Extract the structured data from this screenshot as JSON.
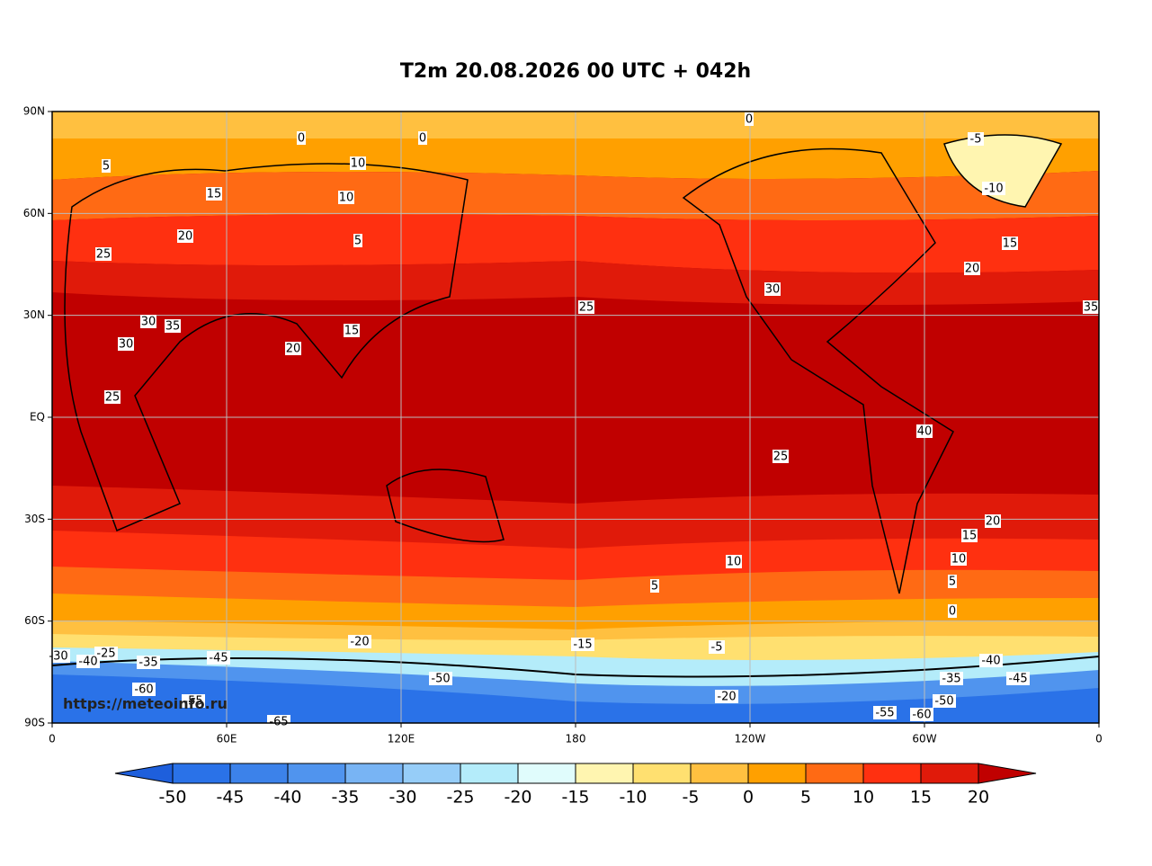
{
  "title": "T2m 20.08.2026 00 UTC + 042h",
  "watermark": "https://meteoinfo.ru",
  "map": {
    "lonlim": [
      0,
      360
    ],
    "latlim": [
      -90,
      90
    ],
    "lonticks": [
      {
        "value": 0,
        "label": "0"
      },
      {
        "value": 60,
        "label": "60E"
      },
      {
        "value": 120,
        "label": "120E"
      },
      {
        "value": 180,
        "label": "180"
      },
      {
        "value": 240,
        "label": "120W"
      },
      {
        "value": 300,
        "label": "60W"
      },
      {
        "value": 360,
        "label": "0"
      }
    ],
    "latticks": [
      {
        "value": 90,
        "label": "90N"
      },
      {
        "value": 60,
        "label": "60N"
      },
      {
        "value": 30,
        "label": "30N"
      },
      {
        "value": 0,
        "label": "EQ"
      },
      {
        "value": -30,
        "label": "30S"
      },
      {
        "value": -60,
        "label": "60S"
      },
      {
        "value": -90,
        "label": "90S"
      }
    ],
    "grid": true,
    "contour_labels": [
      0,
      5,
      10,
      15,
      20,
      25,
      30,
      35,
      30,
      25,
      20,
      15,
      10,
      5,
      0,
      -5,
      -10,
      -15,
      -20,
      -25,
      -30,
      -35,
      -40,
      -45,
      -50,
      -55,
      -60,
      -65,
      0,
      5,
      10,
      15,
      20,
      25,
      30,
      35,
      40,
      25,
      20,
      15,
      10,
      5,
      0,
      -5,
      -10,
      -20,
      -35,
      -40,
      -45,
      -50,
      -55,
      -60
    ]
  },
  "colorbar": {
    "levels": [
      -50,
      -45,
      -40,
      -35,
      -30,
      -25,
      -20,
      -15,
      -10,
      -5,
      0,
      5,
      10,
      15,
      20
    ],
    "colors": [
      "#2a72e8",
      "#3c82ea",
      "#5094ee",
      "#78b4f4",
      "#96cdf8",
      "#b4ecfa",
      "#e0fcfc",
      "#fff5b0",
      "#ffe070",
      "#ffc040",
      "#ffa000",
      "#ff6a14",
      "#ff3010",
      "#e01a0a"
    ],
    "under_color": "#1e5fdc",
    "over_color": "#c00000"
  }
}
